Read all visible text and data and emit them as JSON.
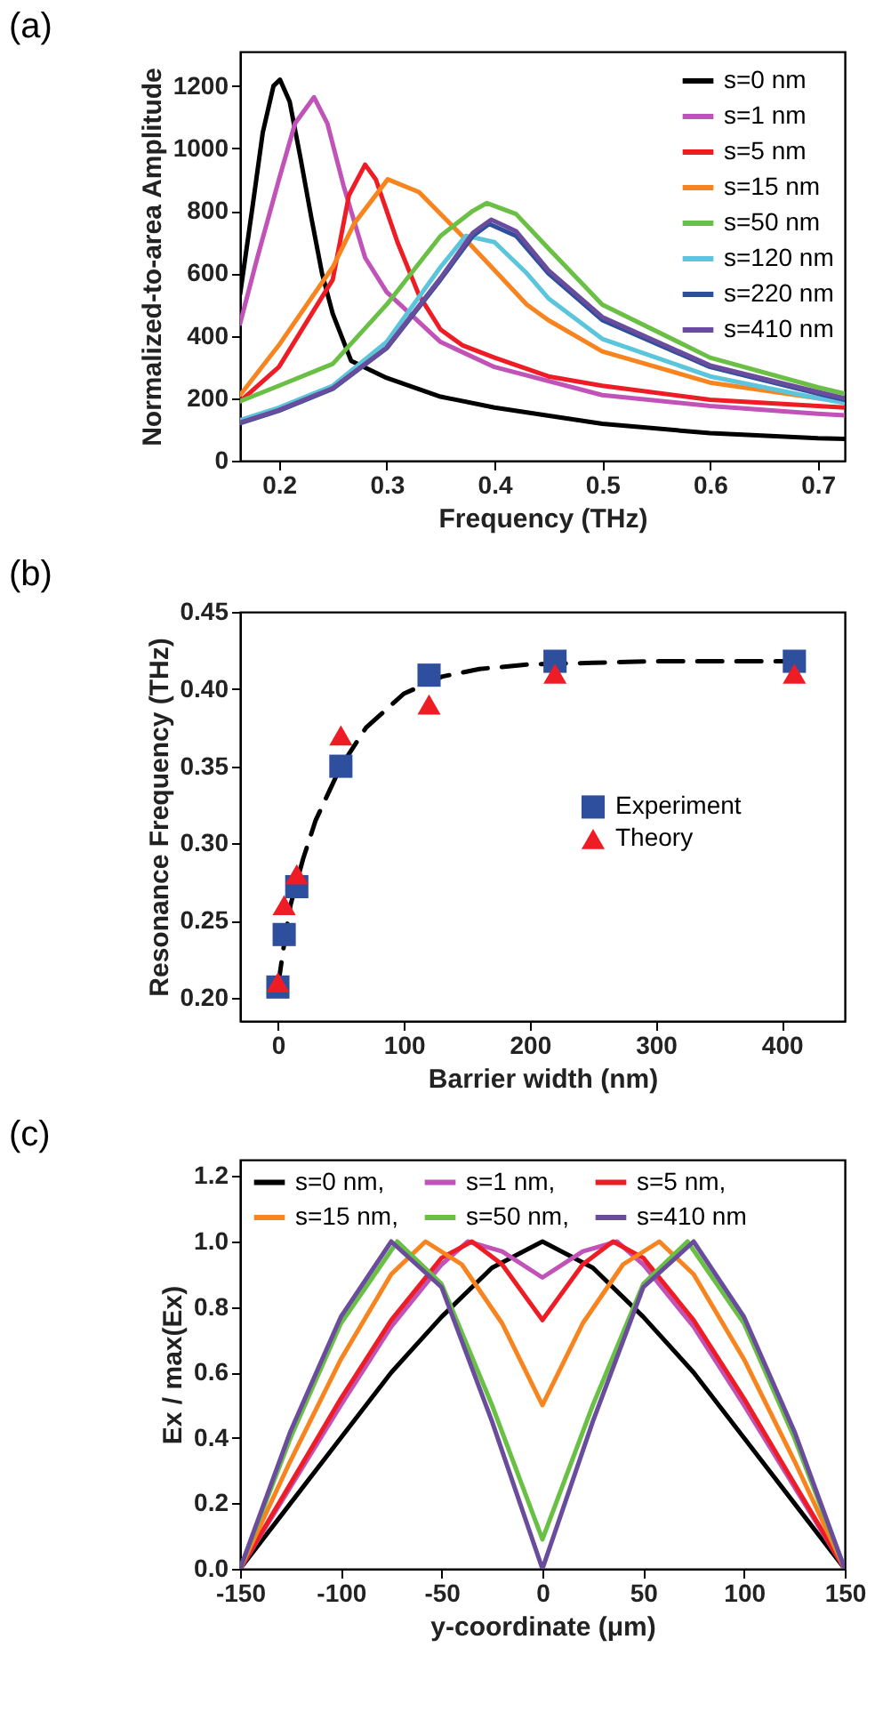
{
  "chart_data": [
    {
      "type": "line",
      "title": "(a)",
      "xlabel": "Frequency (THz)",
      "ylabel": "Normalized-to-area Amplitude",
      "xlim": [
        0.164,
        0.725
      ],
      "ylim": [
        0,
        1310
      ],
      "xticks": [
        {
          "value": 0.2,
          "label": "0.2"
        },
        {
          "value": 0.3,
          "label": "0.3"
        },
        {
          "value": 0.4,
          "label": "0.4"
        },
        {
          "value": 0.5,
          "label": "0.5"
        },
        {
          "value": 0.6,
          "label": "0.6"
        },
        {
          "value": 0.7,
          "label": "0.7"
        }
      ],
      "yticks": [
        0,
        200,
        400,
        600,
        800,
        {
          "value": 1000,
          "label": "1000"
        },
        {
          "value": 1200,
          "label": "1200"
        }
      ],
      "legend": "top right",
      "series": [
        {
          "name": "s=0 nm",
          "color": "#000000",
          "x": [
            0.164,
            0.175,
            0.185,
            0.195,
            0.201,
            0.21,
            0.22,
            0.23,
            0.24,
            0.25,
            0.267,
            0.3,
            0.35,
            0.4,
            0.5,
            0.6,
            0.7,
            0.725
          ],
          "values": [
            533,
            800,
            1050,
            1200,
            1220,
            1150,
            970,
            780,
            600,
            470,
            320,
            265,
            205,
            170,
            118,
            88,
            72,
            70
          ]
        },
        {
          "name": "s=1 nm",
          "color": "#c052b8",
          "x": [
            0.164,
            0.18,
            0.2,
            0.215,
            0.2326,
            0.245,
            0.26,
            0.28,
            0.3,
            0.35,
            0.4,
            0.5,
            0.6,
            0.7,
            0.725
          ],
          "values": [
            439,
            650,
            900,
            1080,
            1164,
            1080,
            880,
            650,
            540,
            380,
            300,
            210,
            175,
            150,
            145
          ]
        },
        {
          "name": "s=5 nm",
          "color": "#ee1c25",
          "x": [
            0.164,
            0.2,
            0.25,
            0.265,
            0.28,
            0.29,
            0.31,
            0.33,
            0.35,
            0.37,
            0.4,
            0.45,
            0.5,
            0.6,
            0.7,
            0.725
          ],
          "values": [
            190,
            300,
            580,
            850,
            948,
            900,
            700,
            530,
            420,
            370,
            330,
            270,
            240,
            195,
            175,
            170
          ]
        },
        {
          "name": "s=15 nm",
          "color": "#f7841f",
          "x": [
            0.164,
            0.2,
            0.25,
            0.27,
            0.301,
            0.33,
            0.37,
            0.4,
            0.43,
            0.45,
            0.5,
            0.6,
            0.7,
            0.725
          ],
          "values": [
            210,
            370,
            620,
            760,
            901,
            860,
            720,
            610,
            500,
            450,
            350,
            250,
            200,
            195
          ]
        },
        {
          "name": "s=50 nm",
          "color": "#6abf45",
          "x": [
            0.164,
            0.2,
            0.25,
            0.3,
            0.35,
            0.38,
            0.393,
            0.42,
            0.45,
            0.5,
            0.6,
            0.7,
            0.725
          ],
          "values": [
            190,
            240,
            310,
            500,
            720,
            800,
            825,
            790,
            680,
            500,
            330,
            235,
            215
          ]
        },
        {
          "name": "s=120 nm",
          "color": "#5bc5db",
          "x": [
            0.164,
            0.2,
            0.25,
            0.3,
            0.35,
            0.3735,
            0.4,
            0.43,
            0.45,
            0.5,
            0.6,
            0.7,
            0.725
          ],
          "values": [
            130,
            170,
            240,
            380,
            620,
            720,
            700,
            600,
            520,
            390,
            270,
            200,
            185
          ]
        },
        {
          "name": "s=220 nm",
          "color": "#2e4f9e",
          "x": [
            0.164,
            0.2,
            0.25,
            0.3,
            0.35,
            0.38,
            0.395,
            0.42,
            0.45,
            0.5,
            0.6,
            0.7,
            0.725
          ],
          "values": [
            120,
            160,
            230,
            360,
            580,
            720,
            758,
            720,
            600,
            450,
            300,
            215,
            195
          ]
        },
        {
          "name": "s=410 nm",
          "color": "#6a4c9c",
          "x": [
            0.164,
            0.2,
            0.25,
            0.3,
            0.35,
            0.38,
            0.397,
            0.42,
            0.45,
            0.5,
            0.6,
            0.7,
            0.725
          ],
          "values": [
            122,
            162,
            232,
            362,
            585,
            730,
            772,
            735,
            610,
            460,
            305,
            220,
            200
          ]
        }
      ]
    },
    {
      "type": "scatter",
      "title": "(b)",
      "xlabel": "Barrier width (nm)",
      "ylabel": "Resonance Frequency (THz)",
      "xlim": [
        -30,
        450
      ],
      "ylim": [
        0.185,
        0.45
      ],
      "xticks": [
        0,
        100,
        200,
        300,
        400
      ],
      "yticks": [
        {
          "value": 0.2,
          "label": "0.20"
        },
        0.25,
        {
          "value": 0.3,
          "label": "0.30"
        },
        0.35,
        {
          "value": 0.4,
          "label": "0.40"
        },
        0.45
      ],
      "legend": "right",
      "series": [
        {
          "type": "line",
          "color": "#000000",
          "line_style": "dashed",
          "x": [
            0,
            5,
            10,
            20,
            30,
            50,
            70,
            100,
            130,
            160,
            200,
            250,
            300,
            410
          ],
          "values": [
            0.207,
            0.235,
            0.26,
            0.29,
            0.315,
            0.35,
            0.375,
            0.397,
            0.408,
            0.413,
            0.416,
            0.417,
            0.418,
            0.418
          ]
        },
        {
          "name": "Experiment",
          "color": "#2e4f9e",
          "marker": "square",
          "x": [
            0,
            5,
            15,
            50,
            120,
            220,
            410
          ],
          "values": [
            0.207,
            0.241,
            0.272,
            0.35,
            0.409,
            0.418,
            0.418
          ]
        },
        {
          "name": "Theory",
          "color": "#ee1c25",
          "marker": "triangle",
          "x": [
            0,
            5,
            15,
            50,
            120,
            220,
            410
          ],
          "values": [
            0.21,
            0.26,
            0.28,
            0.37,
            0.39,
            0.41,
            0.41
          ]
        }
      ]
    },
    {
      "type": "line",
      "title": "(c)",
      "xlabel": "y-coordinate (μm)",
      "ylabel": "Ex / max(Ex)",
      "xlim": [
        -150,
        150
      ],
      "ylim": [
        0,
        1.25
      ],
      "xticks": [
        -150,
        -100,
        -50,
        0,
        50,
        100,
        150
      ],
      "yticks": [
        {
          "value": 0,
          "label": "0.0"
        },
        0.2,
        0.4,
        0.6,
        0.8,
        {
          "value": 1,
          "label": "1.0"
        },
        1.2
      ],
      "legend": "top",
      "series": [
        {
          "name": "s=0 nm,",
          "color": "#000000",
          "x": [
            -150,
            -125,
            -100,
            -75,
            -50,
            -25,
            0,
            25,
            50,
            75,
            100,
            125,
            150
          ],
          "values": [
            0,
            0.2,
            0.4,
            0.6,
            0.77,
            0.92,
            1.0,
            0.92,
            0.77,
            0.6,
            0.4,
            0.2,
            0
          ]
        },
        {
          "name": "s=1 nm,",
          "color": "#c052b8",
          "x": [
            -150,
            -125,
            -100,
            -75,
            -50,
            -37,
            -20,
            0,
            20,
            37,
            50,
            75,
            100,
            125,
            150
          ],
          "values": [
            0,
            0.25,
            0.5,
            0.74,
            0.93,
            1.0,
            0.97,
            0.89,
            0.97,
            1.0,
            0.93,
            0.74,
            0.5,
            0.25,
            0
          ]
        },
        {
          "name": "s=5 nm,",
          "color": "#ee1c25",
          "x": [
            -150,
            -125,
            -100,
            -75,
            -50,
            -35,
            -20,
            0,
            20,
            35,
            50,
            75,
            100,
            125,
            150
          ],
          "values": [
            0,
            0.26,
            0.52,
            0.76,
            0.95,
            1.0,
            0.93,
            0.76,
            0.93,
            1.0,
            0.95,
            0.76,
            0.52,
            0.26,
            0
          ]
        },
        {
          "name": "s=15 nm,",
          "color": "#f7841f",
          "x": [
            -150,
            -125,
            -100,
            -75,
            -58,
            -40,
            -20,
            0,
            20,
            40,
            58,
            75,
            100,
            125,
            150
          ],
          "values": [
            0,
            0.33,
            0.64,
            0.9,
            1.0,
            0.93,
            0.75,
            0.5,
            0.75,
            0.93,
            1.0,
            0.9,
            0.64,
            0.33,
            0
          ]
        },
        {
          "name": "s=50 nm,",
          "color": "#6abf45",
          "x": [
            -150,
            -125,
            -100,
            -72,
            -50,
            -25,
            0,
            25,
            50,
            72,
            100,
            125,
            150
          ],
          "values": [
            0,
            0.4,
            0.75,
            1.0,
            0.87,
            0.5,
            0.09,
            0.5,
            0.87,
            1.0,
            0.75,
            0.4,
            0
          ]
        },
        {
          "name": "s=410 nm",
          "color": "#6a4c9c",
          "x": [
            -150,
            -125,
            -100,
            -75,
            -50,
            -25,
            0,
            25,
            50,
            75,
            100,
            125,
            150
          ],
          "values": [
            0,
            0.42,
            0.77,
            1.0,
            0.86,
            0.45,
            0,
            0.45,
            0.86,
            1.0,
            0.77,
            0.42,
            0
          ]
        }
      ]
    }
  ]
}
